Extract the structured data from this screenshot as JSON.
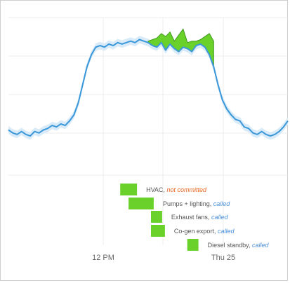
{
  "chart_data": {
    "type": "line",
    "x_ticks": [
      "12 PM",
      "Thu 25"
    ],
    "grid": true,
    "legend": "none",
    "colors": {
      "line": "#3a97d9",
      "band": "#d9ebf8",
      "fill": "#6ad12a",
      "fill_stroke": "#3f9a1c",
      "called": "#4a90d9",
      "not_committed": "#e8621a",
      "grid": "#ececec"
    },
    "series": [
      {
        "values": [
          0.3,
          0.28,
          0.27,
          0.29,
          0.27,
          0.26,
          0.29,
          0.28,
          0.3,
          0.31,
          0.33,
          0.32,
          0.34,
          0.33,
          0.36,
          0.4,
          0.48,
          0.6,
          0.72,
          0.8,
          0.85,
          0.86,
          0.85,
          0.87,
          0.86,
          0.88,
          0.87,
          0.88,
          0.89,
          0.88,
          0.9,
          0.89,
          0.88,
          0.86,
          0.85,
          0.88,
          0.83,
          0.87,
          0.84,
          0.82,
          0.85,
          0.84,
          0.82,
          0.86,
          0.87,
          0.85,
          0.8,
          0.72,
          0.6,
          0.5,
          0.44,
          0.4,
          0.37,
          0.36,
          0.32,
          0.31,
          0.28,
          0.27,
          0.29,
          0.27,
          0.26,
          0.27,
          0.29,
          0.32,
          0.36
        ]
      }
    ],
    "filled_overlay": {
      "start_index": 32,
      "values": [
        0.89,
        0.9,
        0.91,
        0.94,
        0.92,
        0.95,
        0.89,
        0.93,
        0.97,
        0.88,
        0.89,
        0.89,
        0.9,
        0.92,
        0.94,
        0.89
      ]
    },
    "events": [
      {
        "name": "HVAC, ",
        "status": "not committed",
        "state": "not_committed",
        "start": 0.4,
        "end": 0.46
      },
      {
        "name": "Pumps + lighting, ",
        "status": "called",
        "state": "called",
        "start": 0.43,
        "end": 0.52
      },
      {
        "name": "Exhaust fans, ",
        "status": "called",
        "state": "called",
        "start": 0.51,
        "end": 0.55
      },
      {
        "name": "Co-gen export, ",
        "status": "called",
        "state": "called",
        "start": 0.51,
        "end": 0.56
      },
      {
        "name": "Diesel standby, ",
        "status": "called",
        "state": "called",
        "start": 0.64,
        "end": 0.68
      }
    ]
  }
}
